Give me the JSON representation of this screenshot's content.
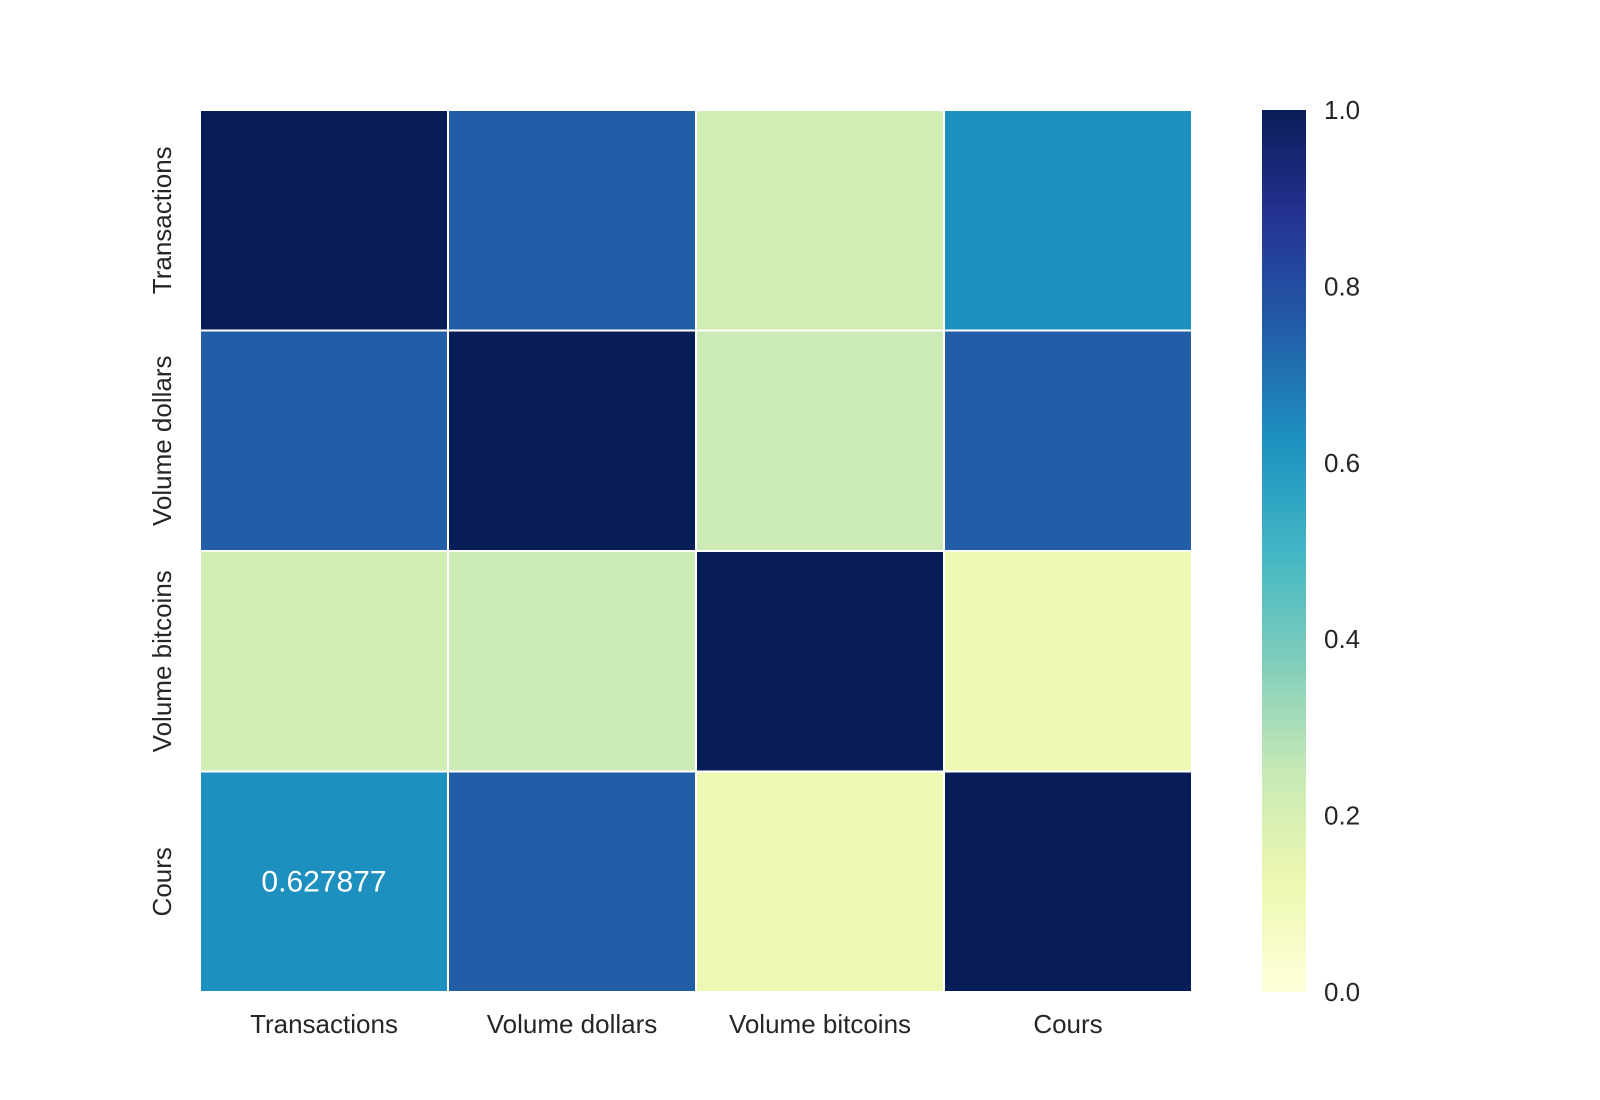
{
  "chart_data": {
    "type": "heatmap",
    "title": "",
    "xlabel": "",
    "ylabel": "",
    "x_labels": [
      "Transactions",
      "Volume dollars",
      "Volume bitcoins",
      "Cours"
    ],
    "y_labels": [
      "Transactions",
      "Volume dollars",
      "Volume bitcoins",
      "Cours"
    ],
    "values": [
      [
        1.0,
        0.75,
        0.22,
        0.627877
      ],
      [
        0.75,
        1.0,
        0.23,
        0.75
      ],
      [
        0.22,
        0.23,
        1.0,
        0.12
      ],
      [
        0.627877,
        0.75,
        0.12,
        1.0
      ]
    ],
    "annotations": [
      {
        "row": 3,
        "col": 0,
        "text": "0.627877"
      }
    ],
    "colormap": "YlGnBu",
    "colormap_stops": [
      "#ffffd9",
      "#edf8b1",
      "#c7e9b4",
      "#7fcdbb",
      "#41b6c4",
      "#1d91c0",
      "#225ea8",
      "#253494",
      "#081d58"
    ],
    "value_range": [
      0.0,
      1.0
    ],
    "colorbar": {
      "ticks": [
        0.0,
        0.2,
        0.4,
        0.6,
        0.8,
        1.0
      ],
      "tick_labels": [
        "0.0",
        "0.2",
        "0.4",
        "0.6",
        "0.8",
        "1.0"
      ],
      "placement": "right"
    },
    "cell_border_color": "#ffffff",
    "grid": false
  }
}
